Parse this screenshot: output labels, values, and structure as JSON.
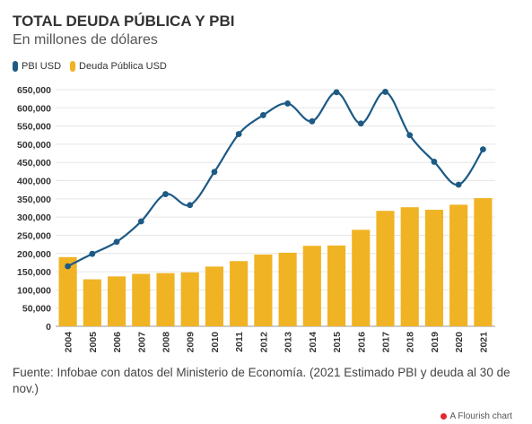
{
  "title": "TOTAL DEUDA PÚBLICA Y PBI",
  "subtitle": "En millones de dólares",
  "footer": "Fuente: Infobae con datos del Ministerio de Economía. (2021 Estimado PBI y deuda al 30 de nov.)",
  "credit": "A Flourish chart",
  "colors": {
    "line": "#1d5a85",
    "bar": "#f0b323",
    "grid": "#e6e6e6",
    "credit_dot": "#e3272c"
  },
  "chart_data": {
    "type": "bar",
    "title": "TOTAL DEUDA PÚBLICA Y PBI",
    "subtitle": "En millones de dólares",
    "xlabel": "",
    "ylabel": "",
    "ylim": [
      0,
      650000
    ],
    "yticks": [
      "0",
      "50,000",
      "100,000",
      "150,000",
      "200,000",
      "250,000",
      "300,000",
      "350,000",
      "400,000",
      "450,000",
      "500,000",
      "550,000",
      "600,000",
      "650,000"
    ],
    "categories": [
      "2004",
      "2005",
      "2006",
      "2007",
      "2008",
      "2009",
      "2010",
      "2011",
      "2012",
      "2013",
      "2014",
      "2015",
      "2016",
      "2017",
      "2018",
      "2019",
      "2020",
      "2021"
    ],
    "legend_position": "top-left",
    "grid": true,
    "series": [
      {
        "name": "PBI USD",
        "type": "line",
        "values": [
          165000,
          199000,
          232000,
          288000,
          363000,
          333000,
          424000,
          528000,
          580000,
          612000,
          563000,
          643000,
          557000,
          644000,
          525000,
          452000,
          389000,
          486000
        ]
      },
      {
        "name": "Deuda Pública USD",
        "type": "bar",
        "values": [
          190000,
          129000,
          137000,
          144000,
          146000,
          148000,
          164000,
          179000,
          197000,
          202000,
          221000,
          222000,
          265000,
          317000,
          327000,
          320000,
          334000,
          352000
        ]
      }
    ]
  }
}
